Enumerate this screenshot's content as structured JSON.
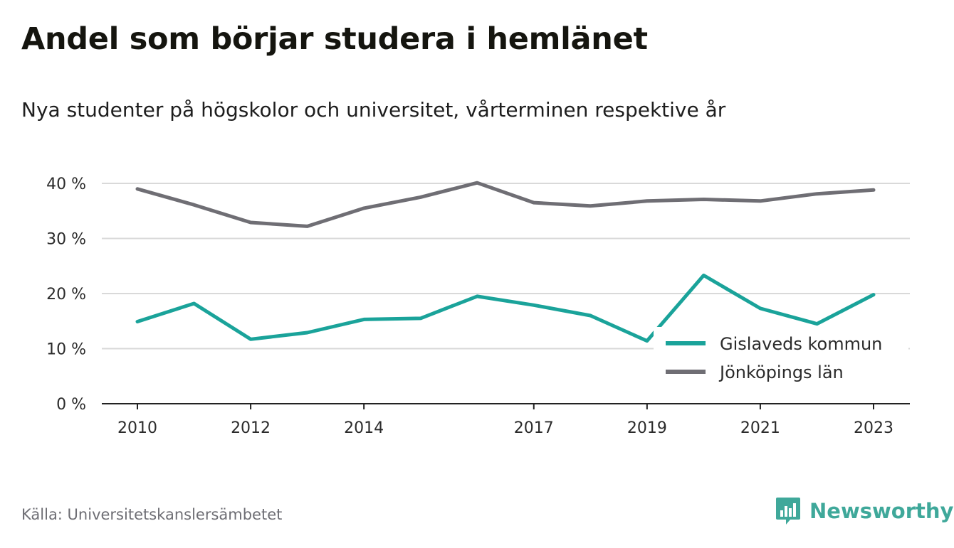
{
  "title": "Andel som börjar studera i hemlänet",
  "subtitle": "Nya studenter på högskolor och universitet, vårterminen respektive år",
  "source": "Källa: Universitetskanslersämbetet",
  "brand": {
    "name": "Newsworthy",
    "icon": "newsworthy-logo-icon",
    "color": "#3fa89a"
  },
  "chart_data": {
    "type": "line",
    "x": [
      2010,
      2011,
      2012,
      2013,
      2014,
      2015,
      2016,
      2017,
      2018,
      2019,
      2020,
      2021,
      2022,
      2023
    ],
    "x_tick_labels": [
      "2010",
      "2012",
      "2014",
      "2017",
      "2019",
      "2021",
      "2023"
    ],
    "y_tick_labels": [
      "40 %",
      "30 %",
      "20 %",
      "10 %",
      "0 %"
    ],
    "y_ticks": [
      40,
      30,
      20,
      10,
      0
    ],
    "ylim": [
      0,
      40
    ],
    "xlim": [
      2010,
      2023
    ],
    "grid": true,
    "legend_position": "bottom-right",
    "series": [
      {
        "name": "Gislaveds kommun",
        "color": "#1aa39a",
        "values": [
          14.9,
          18.2,
          11.7,
          12.9,
          15.3,
          15.5,
          19.5,
          17.9,
          16.0,
          11.4,
          23.3,
          17.3,
          14.5,
          19.8
        ]
      },
      {
        "name": "Jönköpings län",
        "color": "#6f6e74",
        "values": [
          39.0,
          36.1,
          32.9,
          32.2,
          35.5,
          37.5,
          40.1,
          36.5,
          35.9,
          36.8,
          37.1,
          36.8,
          38.1,
          38.8
        ]
      }
    ]
  }
}
